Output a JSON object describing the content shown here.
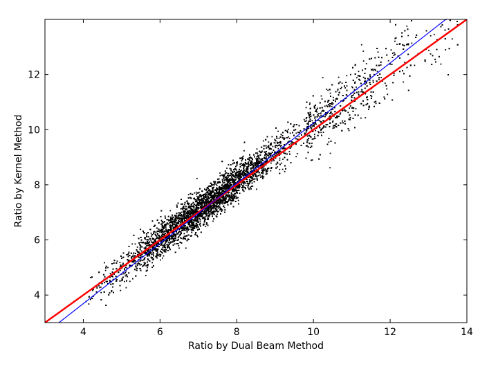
{
  "chart_data": {
    "type": "scatter",
    "title": "",
    "xlabel": "Ratio by Dual Beam Method",
    "ylabel": "Ratio by Kernel Method",
    "xlim": [
      3,
      14
    ],
    "ylim": [
      3,
      14
    ],
    "x_ticks": [
      4,
      6,
      8,
      10,
      12,
      14
    ],
    "y_ticks": [
      4,
      6,
      8,
      10,
      12
    ],
    "x_tick_labels": [
      "4",
      "6",
      "8",
      "10",
      "12",
      "14"
    ],
    "y_tick_labels": [
      "4",
      "6",
      "8",
      "10",
      "12"
    ],
    "grid": false,
    "legend": "none",
    "scatter_summary": {
      "approx_points": 20000,
      "x_range": [
        4.0,
        13.8
      ],
      "trend": "y ≈ x, dense core from x 5 to 9.5, widening spread above x 10",
      "marker_color": "#000000"
    },
    "lines": [
      {
        "role": "identity",
        "color": "#ff0000",
        "points": [
          [
            3,
            3
          ],
          [
            14,
            14
          ]
        ]
      },
      {
        "role": "fit",
        "color": "#0000ff",
        "points": [
          [
            3,
            2.6
          ],
          [
            14,
            14.6
          ]
        ]
      }
    ],
    "colors": {
      "points": "#000000",
      "identity_line": "#ff0000",
      "fit_line": "#0000ff"
    }
  }
}
